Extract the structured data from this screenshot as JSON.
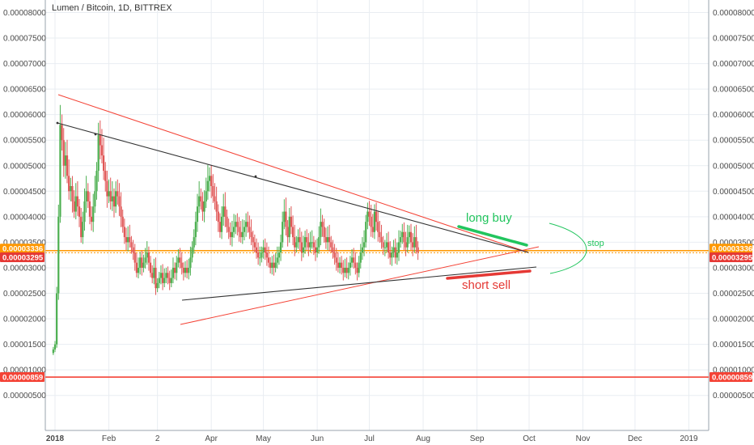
{
  "chart_data": {
    "type": "candlestick",
    "title": "Lumen / Bitcoin, 1D, BITTREX",
    "y_ticks": [
      "0.00008000",
      "0.00007500",
      "0.00007000",
      "0.00006500",
      "0.00006000",
      "0.00005500",
      "0.00005000",
      "0.00004500",
      "0.00004000",
      "0.00003500",
      "0.00003000",
      "0.00002500",
      "0.00002000",
      "0.00001500",
      "0.00001000",
      "0.00000500"
    ],
    "y_tick_values": [
      8e-05,
      7.5e-05,
      7e-05,
      6.5e-05,
      6e-05,
      5.5e-05,
      5e-05,
      4.5e-05,
      4e-05,
      3.5e-05,
      3e-05,
      2.5e-05,
      2e-05,
      1.5e-05,
      1e-05,
      5e-06
    ],
    "ylim": [
      2.1e-06,
      8.15e-05
    ],
    "x_ticks": [
      "2018",
      "Feb",
      "2",
      "Apr",
      "May",
      "Jun",
      "Jul",
      "Aug",
      "Sep",
      "Oct",
      "Nov",
      "Dec",
      "2019"
    ],
    "x_tick_days": [
      0,
      31,
      59,
      90,
      120,
      151,
      181,
      212,
      243,
      273,
      304,
      334,
      365
    ],
    "xlim": [
      -8,
      375
    ],
    "grid": true,
    "up_color": "#4caf50",
    "down_color": "#e05656",
    "price_series": [
      [
        "2017-12-31",
        1.4e-05
      ],
      [
        "2018-01-01",
        1.5e-05
      ],
      [
        "2018-01-02",
        2.5e-05
      ],
      [
        "2018-01-03",
        4e-05
      ],
      [
        "2018-01-04",
        5.8e-05
      ],
      [
        "2018-01-05",
        5.5e-05
      ],
      [
        "2018-01-06",
        5e-05
      ],
      [
        "2018-01-07",
        5.2e-05
      ],
      [
        "2018-01-08",
        4.8e-05
      ],
      [
        "2018-01-09",
        4.5e-05
      ],
      [
        "2018-01-10",
        4.6e-05
      ],
      [
        "2018-01-11",
        4.3e-05
      ],
      [
        "2018-01-12",
        4.1e-05
      ],
      [
        "2018-01-13",
        4.4e-05
      ],
      [
        "2018-01-14",
        4.2e-05
      ],
      [
        "2018-01-15",
        4e-05
      ],
      [
        "2018-01-16",
        3.6e-05
      ],
      [
        "2018-01-17",
        3.9e-05
      ],
      [
        "2018-01-18",
        4.3e-05
      ],
      [
        "2018-01-19",
        4.5e-05
      ],
      [
        "2018-01-20",
        4.3e-05
      ],
      [
        "2018-01-21",
        4e-05
      ],
      [
        "2018-01-22",
        3.9e-05
      ],
      [
        "2018-01-23",
        4.2e-05
      ],
      [
        "2018-01-24",
        4.5e-05
      ],
      [
        "2018-01-25",
        4.9e-05
      ],
      [
        "2018-01-26",
        5.6e-05
      ],
      [
        "2018-01-27",
        5.4e-05
      ],
      [
        "2018-01-28",
        5.2e-05
      ],
      [
        "2018-01-29",
        4.9e-05
      ],
      [
        "2018-01-30",
        4.7e-05
      ],
      [
        "2018-01-31",
        4.4e-05
      ],
      [
        "2018-02-01",
        4.5e-05
      ],
      [
        "2018-02-02",
        4.3e-05
      ],
      [
        "2018-02-03",
        4.4e-05
      ],
      [
        "2018-02-04",
        4.2e-05
      ],
      [
        "2018-02-05",
        4.5e-05
      ],
      [
        "2018-02-06",
        4.4e-05
      ],
      [
        "2018-02-07",
        4.2e-05
      ],
      [
        "2018-02-08",
        4e-05
      ],
      [
        "2018-02-09",
        3.8e-05
      ],
      [
        "2018-02-10",
        3.6e-05
      ],
      [
        "2018-02-11",
        3.5e-05
      ],
      [
        "2018-02-12",
        3.6e-05
      ],
      [
        "2018-02-13",
        3.5e-05
      ],
      [
        "2018-02-14",
        3.4e-05
      ],
      [
        "2018-02-15",
        3.3e-05
      ],
      [
        "2018-02-16",
        3.1e-05
      ],
      [
        "2018-02-17",
        2.9e-05
      ],
      [
        "2018-02-18",
        3e-05
      ],
      [
        "2018-02-19",
        3.2e-05
      ],
      [
        "2018-02-20",
        3e-05
      ],
      [
        "2018-02-21",
        3.1e-05
      ],
      [
        "2018-02-22",
        3.2e-05
      ],
      [
        "2018-02-23",
        3.3e-05
      ],
      [
        "2018-02-24",
        3.1e-05
      ],
      [
        "2018-02-25",
        2.9e-05
      ],
      [
        "2018-02-26",
        2.8e-05
      ],
      [
        "2018-02-27",
        3e-05
      ],
      [
        "2018-02-28",
        2.6e-05
      ],
      [
        "2018-03-01",
        2.7e-05
      ],
      [
        "2018-03-02",
        2.8e-05
      ],
      [
        "2018-03-03",
        2.9e-05
      ],
      [
        "2018-03-04",
        2.7e-05
      ],
      [
        "2018-03-05",
        2.8e-05
      ],
      [
        "2018-03-06",
        2.9e-05
      ],
      [
        "2018-03-07",
        2.8e-05
      ],
      [
        "2018-03-08",
        2.7e-05
      ],
      [
        "2018-03-09",
        2.8e-05
      ],
      [
        "2018-03-10",
        3e-05
      ],
      [
        "2018-03-11",
        2.9e-05
      ],
      [
        "2018-03-12",
        3.1e-05
      ],
      [
        "2018-03-13",
        3.2e-05
      ],
      [
        "2018-03-14",
        3.1e-05
      ],
      [
        "2018-03-15",
        3e-05
      ],
      [
        "2018-03-16",
        2.9e-05
      ],
      [
        "2018-03-17",
        3e-05
      ],
      [
        "2018-03-18",
        2.9e-05
      ],
      [
        "2018-03-19",
        3e-05
      ],
      [
        "2018-03-20",
        3.2e-05
      ],
      [
        "2018-03-21",
        3.4e-05
      ],
      [
        "2018-03-22",
        3.6e-05
      ],
      [
        "2018-03-23",
        3.9e-05
      ],
      [
        "2018-03-24",
        4.2e-05
      ],
      [
        "2018-03-25",
        4.4e-05
      ],
      [
        "2018-03-26",
        4.3e-05
      ],
      [
        "2018-03-27",
        4.1e-05
      ],
      [
        "2018-03-28",
        4.3e-05
      ],
      [
        "2018-03-29",
        4.5e-05
      ],
      [
        "2018-03-30",
        4.7e-05
      ],
      [
        "2018-03-31",
        4.8e-05
      ],
      [
        "2018-04-01",
        4.6e-05
      ],
      [
        "2018-04-02",
        4.4e-05
      ],
      [
        "2018-04-03",
        4.3e-05
      ],
      [
        "2018-04-04",
        4.1e-05
      ],
      [
        "2018-04-05",
        3.9e-05
      ],
      [
        "2018-04-06",
        3.7e-05
      ],
      [
        "2018-04-07",
        4e-05
      ],
      [
        "2018-04-08",
        4.2e-05
      ],
      [
        "2018-04-09",
        4e-05
      ],
      [
        "2018-04-10",
        3.8e-05
      ],
      [
        "2018-04-11",
        3.7e-05
      ],
      [
        "2018-04-12",
        3.6e-05
      ],
      [
        "2018-04-13",
        3.7e-05
      ],
      [
        "2018-04-14",
        3.8e-05
      ],
      [
        "2018-04-15",
        3.9e-05
      ],
      [
        "2018-04-16",
        3.8e-05
      ],
      [
        "2018-04-17",
        3.7e-05
      ],
      [
        "2018-04-18",
        3.6e-05
      ],
      [
        "2018-04-19",
        3.7e-05
      ],
      [
        "2018-04-20",
        3.8e-05
      ],
      [
        "2018-04-21",
        3.9e-05
      ],
      [
        "2018-04-22",
        3.8e-05
      ],
      [
        "2018-04-23",
        3.7e-05
      ],
      [
        "2018-04-24",
        3.6e-05
      ],
      [
        "2018-04-25",
        3.5e-05
      ],
      [
        "2018-04-26",
        3.4e-05
      ],
      [
        "2018-04-27",
        3.3e-05
      ],
      [
        "2018-04-28",
        3.2e-05
      ],
      [
        "2018-04-29",
        3.2e-05
      ],
      [
        "2018-04-30",
        3.3e-05
      ],
      [
        "2018-05-01",
        3.4e-05
      ],
      [
        "2018-05-02",
        3.3e-05
      ],
      [
        "2018-05-03",
        3.2e-05
      ],
      [
        "2018-05-04",
        3.1e-05
      ],
      [
        "2018-05-05",
        3e-05
      ],
      [
        "2018-05-06",
        3.1e-05
      ],
      [
        "2018-05-07",
        3e-05
      ],
      [
        "2018-05-08",
        3.1e-05
      ],
      [
        "2018-05-09",
        3.2e-05
      ],
      [
        "2018-05-10",
        3.3e-05
      ],
      [
        "2018-05-11",
        3.5e-05
      ],
      [
        "2018-05-12",
        3.9e-05
      ],
      [
        "2018-05-13",
        4.1e-05
      ],
      [
        "2018-05-14",
        3.8e-05
      ],
      [
        "2018-05-15",
        3.6e-05
      ],
      [
        "2018-05-16",
        4e-05
      ],
      [
        "2018-05-17",
        3.8e-05
      ],
      [
        "2018-05-18",
        3.6e-05
      ],
      [
        "2018-05-19",
        3.4e-05
      ],
      [
        "2018-05-20",
        3.5e-05
      ],
      [
        "2018-05-21",
        3.6e-05
      ],
      [
        "2018-05-22",
        3.5e-05
      ],
      [
        "2018-05-23",
        3.3e-05
      ],
      [
        "2018-05-24",
        3.4e-05
      ],
      [
        "2018-05-25",
        3.6e-05
      ],
      [
        "2018-05-26",
        3.5e-05
      ],
      [
        "2018-05-27",
        3.4e-05
      ],
      [
        "2018-05-28",
        3.5e-05
      ],
      [
        "2018-05-29",
        3.5e-05
      ],
      [
        "2018-05-30",
        3.4e-05
      ],
      [
        "2018-05-31",
        3.3e-05
      ]
    ],
    "right_tags": [
      {
        "label": "0.00003336",
        "value": 3.336e-05,
        "color": "#ff9800"
      },
      {
        "label": "0.00003295",
        "value": 3.295e-05,
        "color": "#e53935"
      },
      {
        "label": "0.00000859",
        "value": 8.59e-06,
        "color": "#f44336"
      }
    ],
    "left_tags": [
      {
        "label": "0.00003336",
        "value": 3.336e-05,
        "color": "#ff9800"
      },
      {
        "label": "0.00003295",
        "value": 3.295e-05,
        "color": "#e53935"
      },
      {
        "label": "0.00000859",
        "value": 8.59e-06,
        "color": "#f44336"
      }
    ],
    "annotations": {
      "long_buy": "long buy",
      "short_sell": "short sell",
      "stop": "stop"
    }
  }
}
